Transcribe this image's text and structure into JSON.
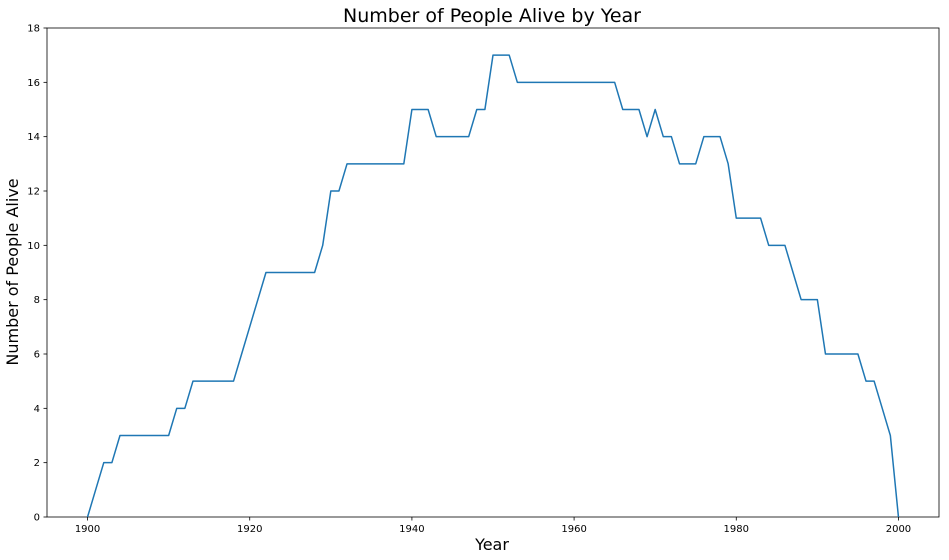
{
  "chart_data": {
    "type": "line",
    "title": "Number of People Alive by Year",
    "xlabel": "Year",
    "ylabel": "Number of People Alive",
    "xlim": [
      1895,
      2005
    ],
    "ylim": [
      0,
      18
    ],
    "xticks": [
      1900,
      1920,
      1940,
      1960,
      1980,
      2000
    ],
    "yticks": [
      0,
      2,
      4,
      6,
      8,
      10,
      12,
      14,
      16,
      18
    ],
    "grid": false,
    "legend": "none",
    "series": [
      {
        "color": "#1f77b4",
        "x": [
          1900,
          1901,
          1902,
          1903,
          1904,
          1905,
          1906,
          1907,
          1908,
          1909,
          1910,
          1911,
          1912,
          1913,
          1914,
          1915,
          1916,
          1917,
          1918,
          1919,
          1920,
          1921,
          1922,
          1923,
          1924,
          1925,
          1926,
          1927,
          1928,
          1929,
          1930,
          1931,
          1932,
          1933,
          1934,
          1935,
          1936,
          1937,
          1938,
          1939,
          1940,
          1941,
          1942,
          1943,
          1944,
          1945,
          1946,
          1947,
          1948,
          1949,
          1950,
          1951,
          1952,
          1953,
          1954,
          1955,
          1956,
          1957,
          1958,
          1959,
          1960,
          1961,
          1962,
          1963,
          1964,
          1965,
          1966,
          1967,
          1968,
          1969,
          1970,
          1971,
          1972,
          1973,
          1974,
          1975,
          1976,
          1977,
          1978,
          1979,
          1980,
          1981,
          1982,
          1983,
          1984,
          1985,
          1986,
          1987,
          1988,
          1989,
          1990,
          1991,
          1992,
          1993,
          1994,
          1995,
          1996,
          1997,
          1998,
          1999,
          2000
        ],
        "y": [
          0,
          1,
          2,
          2,
          3,
          3,
          3,
          3,
          3,
          3,
          3,
          4,
          4,
          5,
          5,
          5,
          5,
          5,
          5,
          6,
          7,
          8,
          9,
          9,
          9,
          9,
          9,
          9,
          9,
          10,
          12,
          12,
          13,
          13,
          13,
          13,
          13,
          13,
          13,
          13,
          15,
          15,
          15,
          14,
          14,
          14,
          14,
          14,
          15,
          15,
          17,
          17,
          17,
          16,
          16,
          16,
          16,
          16,
          16,
          16,
          16,
          16,
          16,
          16,
          16,
          16,
          15,
          15,
          15,
          14,
          15,
          14,
          14,
          13,
          13,
          13,
          14,
          14,
          14,
          13,
          11,
          11,
          11,
          11,
          10,
          10,
          10,
          9,
          8,
          8,
          8,
          6,
          6,
          6,
          6,
          6,
          5,
          5,
          4,
          3,
          0
        ]
      }
    ]
  }
}
